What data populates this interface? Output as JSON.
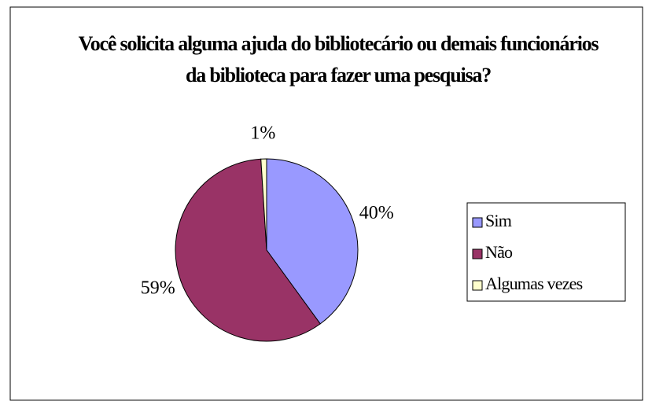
{
  "chart_data": {
    "type": "pie",
    "title": "Você solicita alguma ajuda do bibliotecário ou demais funcionários da biblioteca para fazer uma pesquisa?",
    "categories": [
      "Sim",
      "Não",
      "Algumas vezes"
    ],
    "values": [
      40,
      59,
      1
    ],
    "value_labels": [
      "40%",
      "59%",
      "1%"
    ],
    "colors": [
      "#9999ff",
      "#993366",
      "#ffffcc"
    ],
    "legend": "right"
  }
}
